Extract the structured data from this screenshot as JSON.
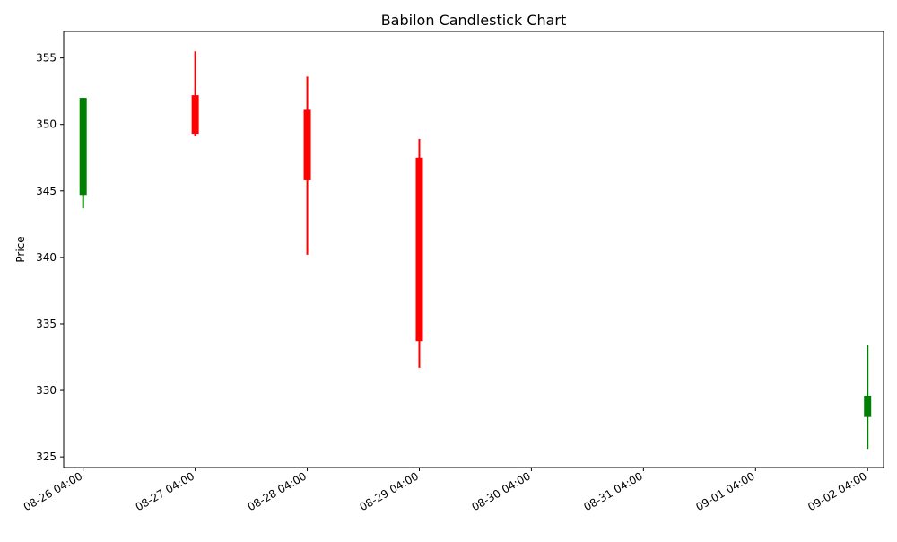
{
  "chart_data": {
    "type": "candlestick",
    "title": "Babilon Candlestick Chart",
    "xlabel": "",
    "ylabel": "Price",
    "ylim": [
      324.2,
      357.0
    ],
    "yticks": [
      325,
      330,
      335,
      340,
      345,
      350,
      355
    ],
    "xlim": [
      "08-25 23:50",
      "09-02 07:25"
    ],
    "xticks": [
      "08-26 04:00",
      "08-27 04:00",
      "08-28 04:00",
      "08-29 04:00",
      "08-30 04:00",
      "08-31 04:00",
      "09-01 04:00",
      "09-02 04:00"
    ],
    "grid": false,
    "colors": {
      "up": "#008000",
      "down": "#ff0000"
    },
    "candles": [
      {
        "x": "08-26 04:00",
        "open": 344.7,
        "high": 352.0,
        "low": 343.7,
        "close": 352.0
      },
      {
        "x": "08-27 04:00",
        "open": 352.2,
        "high": 355.5,
        "low": 349.1,
        "close": 349.3
      },
      {
        "x": "08-28 04:00",
        "open": 351.1,
        "high": 353.6,
        "low": 340.2,
        "close": 345.8
      },
      {
        "x": "08-29 04:00",
        "open": 347.5,
        "high": 348.9,
        "low": 331.7,
        "close": 333.7
      },
      {
        "x": "09-02 04:00",
        "open": 328.0,
        "high": 333.4,
        "low": 325.6,
        "close": 329.6
      }
    ]
  }
}
